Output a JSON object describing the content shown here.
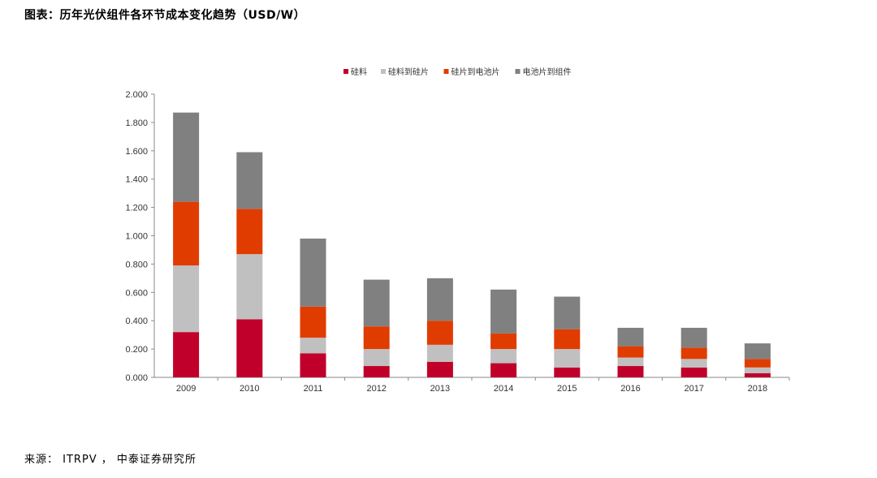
{
  "title": "图表：历年光伏组件各环节成本变化趋势（USD/W）",
  "source": "来源： ITRPV ， 中泰证券研究所",
  "chart_data": {
    "type": "bar",
    "stacked": true,
    "categories": [
      "2009",
      "2010",
      "2011",
      "2012",
      "2013",
      "2014",
      "2015",
      "2016",
      "2017",
      "2018"
    ],
    "series": [
      {
        "name": "硅料",
        "color": "#C0002A",
        "values": [
          0.32,
          0.41,
          0.17,
          0.08,
          0.11,
          0.1,
          0.07,
          0.08,
          0.07,
          0.03
        ]
      },
      {
        "name": "硅料到硅片",
        "color": "#C0C0C0",
        "values": [
          0.47,
          0.46,
          0.11,
          0.12,
          0.12,
          0.1,
          0.13,
          0.06,
          0.06,
          0.04
        ]
      },
      {
        "name": "硅片到电池片",
        "color": "#E03C00",
        "values": [
          0.45,
          0.32,
          0.22,
          0.16,
          0.17,
          0.11,
          0.14,
          0.08,
          0.08,
          0.06
        ]
      },
      {
        "name": "电池片到组件",
        "color": "#808080",
        "values": [
          0.63,
          0.4,
          0.48,
          0.33,
          0.3,
          0.31,
          0.23,
          0.13,
          0.14,
          0.11
        ]
      }
    ],
    "y_ticks": [
      "0.000",
      "0.200",
      "0.400",
      "0.600",
      "0.800",
      "1.000",
      "1.200",
      "1.400",
      "1.600",
      "1.800",
      "2.000"
    ],
    "ylim": [
      0,
      2.0
    ],
    "legend_position": "top",
    "grid": false
  }
}
